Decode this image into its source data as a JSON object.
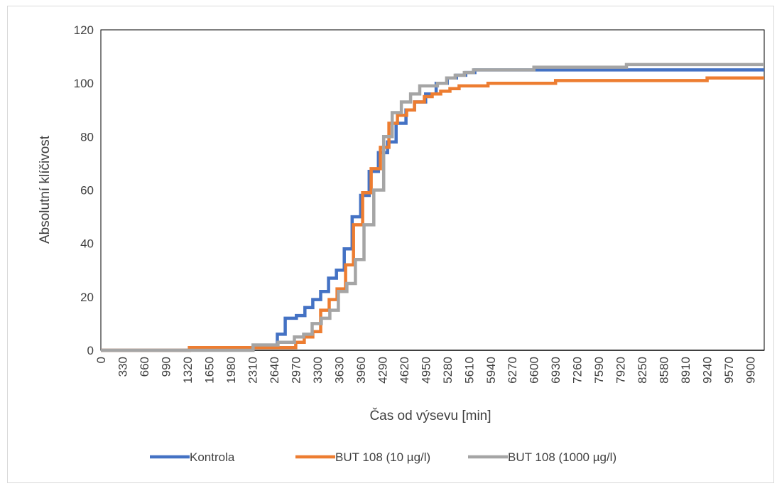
{
  "chart_data": {
    "type": "line",
    "xlabel": "Čas od výsevu [min]",
    "ylabel": "Absolutní klíčivost",
    "xlim": [
      0,
      10110
    ],
    "ylim": [
      0,
      120
    ],
    "y_ticks": [
      0,
      20,
      40,
      60,
      80,
      100,
      120
    ],
    "x_ticks": [
      0,
      330,
      660,
      990,
      1320,
      1650,
      1980,
      2310,
      2640,
      2970,
      3300,
      3630,
      3960,
      4290,
      4620,
      4950,
      5280,
      5610,
      5940,
      6270,
      6600,
      6930,
      7260,
      7590,
      7920,
      8250,
      8580,
      8910,
      9240,
      9570,
      9900
    ],
    "x_tick_labels": [
      "0",
      "330",
      "660",
      "990",
      "1320",
      "1650",
      "1980",
      "2310",
      "2640",
      "2970",
      "3300",
      "3630",
      "3960",
      "4290",
      "4620",
      "4950",
      "5280",
      "5610",
      "5940",
      "6270",
      "6600",
      "6930",
      "7260",
      "7590",
      "7920",
      "8250",
      "8580",
      "8910",
      "9240",
      "9570",
      "9900"
    ],
    "grid": false,
    "legend_position": "bottom",
    "step": true,
    "series": [
      {
        "name": "Kontrola",
        "color": "#4472c4",
        "x": [
          0,
          1350,
          2690,
          2810,
          2980,
          3110,
          3230,
          3350,
          3470,
          3590,
          3710,
          3830,
          3960,
          4090,
          4230,
          4370,
          4500,
          4650,
          4780,
          4950,
          5110,
          5280,
          5420,
          5560,
          5700,
          6600,
          10110
        ],
        "y": [
          0,
          1,
          6,
          12,
          13,
          16,
          19,
          22,
          27,
          30,
          38,
          50,
          58,
          67,
          74,
          78,
          85,
          90,
          93,
          96,
          100,
          102,
          103,
          104,
          105,
          105,
          105
        ]
      },
      {
        "name": "BUT 108 (10 µg/l)",
        "color": "#ed7d31",
        "x": [
          0,
          1350,
          2970,
          3100,
          3230,
          3350,
          3480,
          3600,
          3730,
          3850,
          3990,
          4120,
          4260,
          4390,
          4520,
          4660,
          4780,
          4930,
          5050,
          5180,
          5320,
          5460,
          5600,
          5900,
          6930,
          9240,
          10110
        ],
        "y": [
          0,
          1,
          3,
          5,
          7,
          15,
          19,
          23,
          32,
          47,
          59,
          68,
          76,
          85,
          88,
          90,
          93,
          95,
          96,
          97,
          98,
          99,
          99,
          100,
          101,
          102,
          102
        ]
      },
      {
        "name": "BUT 108 (1000 µg/l)",
        "color": "#a5a5a5",
        "x": [
          0,
          2320,
          2700,
          2950,
          3090,
          3220,
          3360,
          3490,
          3620,
          3750,
          3880,
          4010,
          4160,
          4310,
          4440,
          4580,
          4720,
          4860,
          4990,
          5130,
          5270,
          5400,
          5540,
          5680,
          6600,
          8010,
          10110
        ],
        "y": [
          0,
          2,
          3,
          5,
          6,
          10,
          12,
          15,
          22,
          25,
          34,
          47,
          60,
          80,
          89,
          93,
          96,
          99,
          99,
          100,
          102,
          103,
          104,
          105,
          106,
          107,
          107
        ]
      }
    ]
  }
}
